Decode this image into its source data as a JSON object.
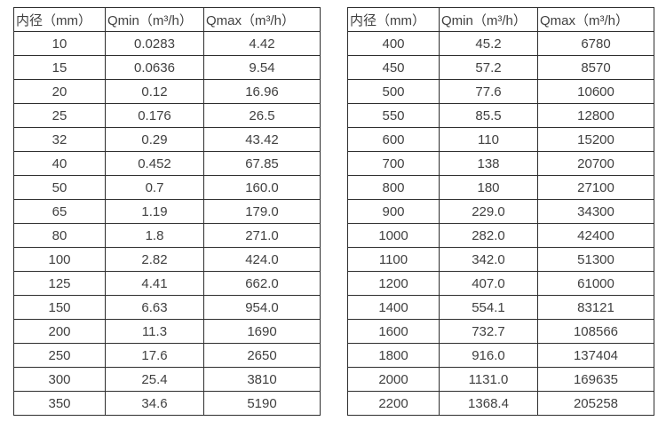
{
  "colors": {
    "background": "#ffffff",
    "border": "#2e2e2e",
    "text": "#404040"
  },
  "tables": [
    {
      "name": "flow-spec-table-small-diameters",
      "headers": [
        "内径（mm）",
        "Qmin（m³/h）",
        "Qmax（m³/h）"
      ],
      "rows": [
        [
          "10",
          "0.0283",
          "4.42"
        ],
        [
          "15",
          "0.0636",
          "9.54"
        ],
        [
          "20",
          "0.12",
          "16.96"
        ],
        [
          "25",
          "0.176",
          "26.5"
        ],
        [
          "32",
          "0.29",
          "43.42"
        ],
        [
          "40",
          "0.452",
          "67.85"
        ],
        [
          "50",
          "0.7",
          "160.0"
        ],
        [
          "65",
          "1.19",
          "179.0"
        ],
        [
          "80",
          "1.8",
          "271.0"
        ],
        [
          "100",
          "2.82",
          "424.0"
        ],
        [
          "125",
          "4.41",
          "662.0"
        ],
        [
          "150",
          "6.63",
          "954.0"
        ],
        [
          "200",
          "11.3",
          "1690"
        ],
        [
          "250",
          "17.6",
          "2650"
        ],
        [
          "300",
          "25.4",
          "3810"
        ],
        [
          "350",
          "34.6",
          "5190"
        ]
      ]
    },
    {
      "name": "flow-spec-table-large-diameters",
      "headers": [
        "内径（mm）",
        "Qmin（m³/h）",
        "Qmax（m³/h）"
      ],
      "rows": [
        [
          "400",
          "45.2",
          "6780"
        ],
        [
          "450",
          "57.2",
          "8570"
        ],
        [
          "500",
          "77.6",
          "10600"
        ],
        [
          "550",
          "85.5",
          "12800"
        ],
        [
          "600",
          "110",
          "15200"
        ],
        [
          "700",
          "138",
          "20700"
        ],
        [
          "800",
          "180",
          "27100"
        ],
        [
          "900",
          "229.0",
          "34300"
        ],
        [
          "1000",
          "282.0",
          "42400"
        ],
        [
          "1100",
          "342.0",
          "51300"
        ],
        [
          "1200",
          "407.0",
          "61000"
        ],
        [
          "1400",
          "554.1",
          "83121"
        ],
        [
          "1600",
          "732.7",
          "108566"
        ],
        [
          "1800",
          "916.0",
          "137404"
        ],
        [
          "2000",
          "1131.0",
          "169635"
        ],
        [
          "2200",
          "1368.4",
          "205258"
        ]
      ]
    }
  ]
}
